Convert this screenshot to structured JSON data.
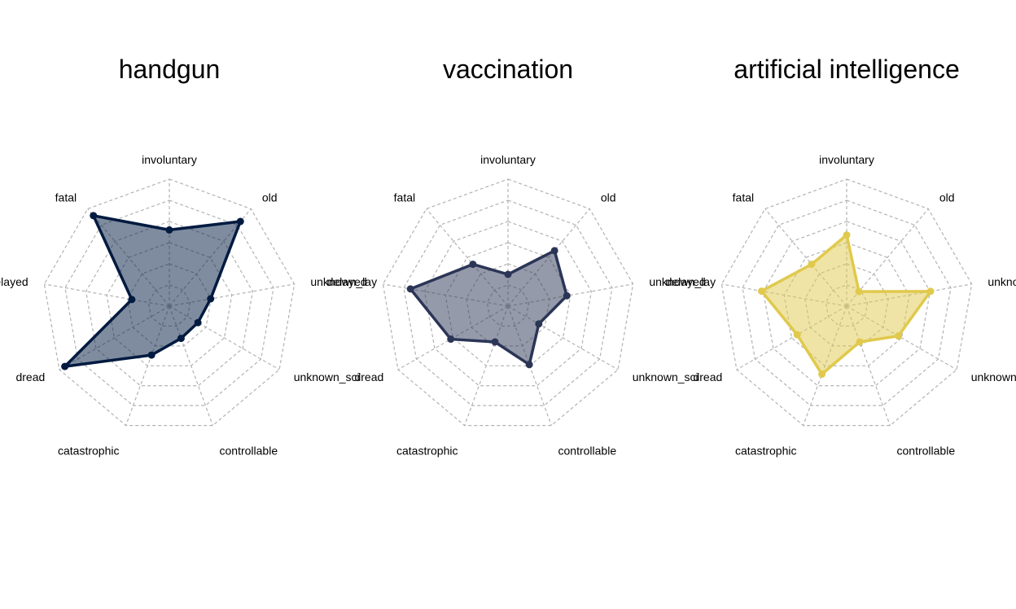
{
  "chart_data": [
    {
      "type": "radar",
      "title": "handgun",
      "axes": [
        "involuntary",
        "old",
        "unknown_lay",
        "unknown_sci",
        "controllable",
        "catastrophic",
        "dread",
        "delayed",
        "fatal"
      ],
      "values": [
        0.6,
        0.87,
        0.33,
        0.26,
        0.27,
        0.41,
        0.95,
        0.3,
        0.93
      ],
      "rmax": 1,
      "rings": 6,
      "grid": true,
      "color": "#001a40",
      "fill_opacity": 0.5
    },
    {
      "type": "radar",
      "title": "vaccination",
      "axes": [
        "involuntary",
        "old",
        "unknown_lay",
        "unknown_sci",
        "controllable",
        "catastrophic",
        "dread",
        "delayed",
        "fatal"
      ],
      "values": [
        0.25,
        0.57,
        0.47,
        0.28,
        0.49,
        0.3,
        0.52,
        0.78,
        0.43
      ],
      "rmax": 1,
      "rings": 6,
      "grid": true,
      "color": "#2b3556",
      "fill_opacity": 0.5
    },
    {
      "type": "radar",
      "title": "artificial intelligence",
      "axes": [
        "involuntary",
        "old",
        "unknown_lay",
        "unknown_sci",
        "controllable",
        "catastrophic",
        "dread",
        "delayed",
        "fatal"
      ],
      "values": [
        0.56,
        0.15,
        0.67,
        0.47,
        0.3,
        0.57,
        0.45,
        0.68,
        0.43
      ],
      "rmax": 1,
      "rings": 6,
      "grid": true,
      "color": "#e0c94c",
      "fill_opacity": 0.5
    }
  ]
}
